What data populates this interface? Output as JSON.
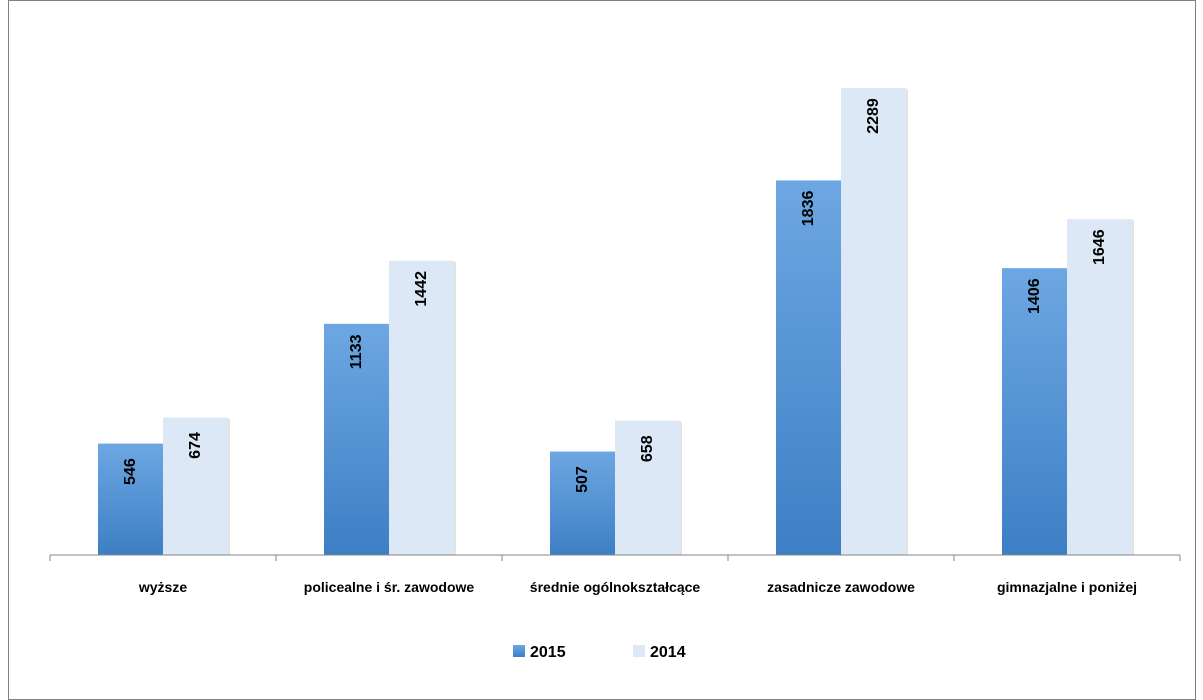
{
  "chart_data": {
    "type": "bar",
    "categories": [
      "wyższe",
      "policealne i śr. zawodowe",
      "średnie ogólnokształcące",
      "zasadnicze zawodowe",
      "gimnazjalne i poniżej"
    ],
    "series": [
      {
        "name": "2015",
        "values": [
          546,
          1133,
          507,
          1836,
          1406
        ],
        "color": "#4a8ad0"
      },
      {
        "name": "2014",
        "values": [
          674,
          1442,
          658,
          2289,
          1646
        ],
        "color": "#dce8f5"
      }
    ],
    "title": "",
    "xlabel": "",
    "ylabel": "",
    "ylim": [
      0,
      2500
    ],
    "grid": false,
    "legend": "bottom"
  }
}
